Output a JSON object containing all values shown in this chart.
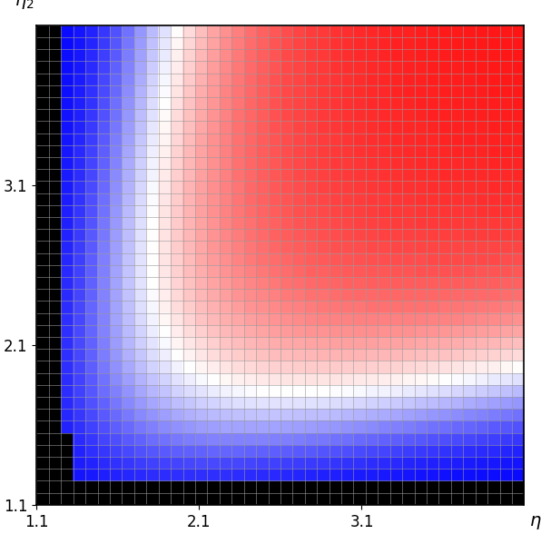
{
  "eta_min": 1.1,
  "eta_max": 4.1,
  "n_cells": 40,
  "x_ticks": [
    1.1,
    2.1,
    3.1
  ],
  "y_ticks": [
    1.1,
    2.1,
    3.1
  ],
  "figsize": [
    5.96,
    5.88
  ],
  "dpi": 100,
  "grid_color": "#999999",
  "grid_linewidth": 0.4,
  "black_n_cols": 2,
  "black_n_rows": 2
}
